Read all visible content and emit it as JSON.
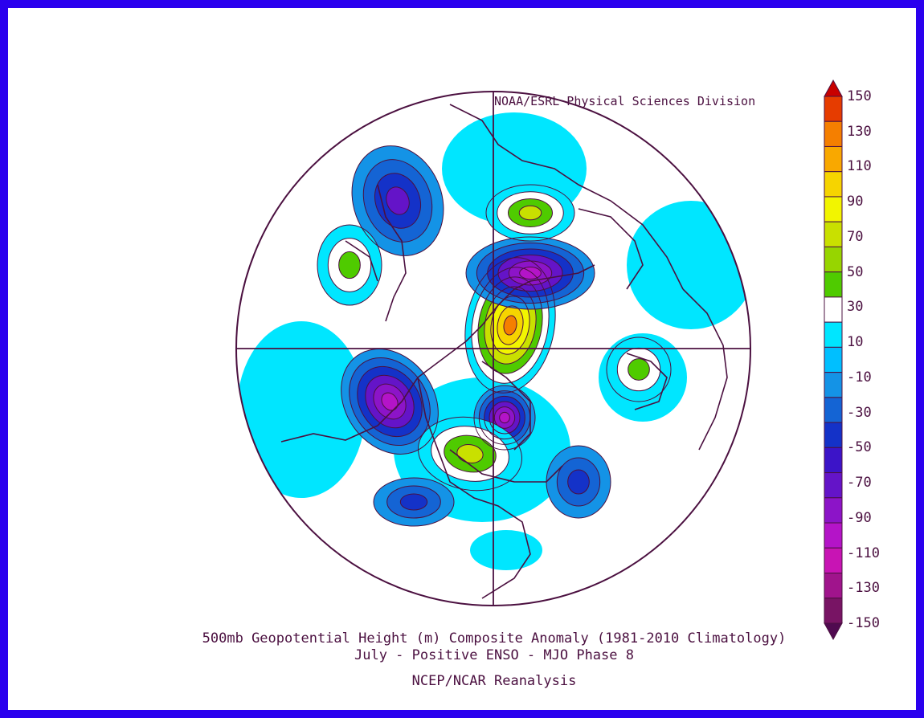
{
  "credit": "NOAA/ESRL Physical Sciences Division",
  "title_line1": "500mb Geopotential Height (m) Composite Anomaly (1981-2010 Climatology)",
  "title_line2": "July - Positive ENSO - MJO Phase 8",
  "source": "NCEP/NCAR Reanalysis",
  "colorbar": {
    "labels": [
      "150",
      "130",
      "110",
      "90",
      "70",
      "50",
      "30",
      "10",
      "-10",
      "-30",
      "-50",
      "-70",
      "-90",
      "-110",
      "-130",
      "-150"
    ],
    "colors": [
      "#c80000",
      "#e63c00",
      "#f57f00",
      "#f9a800",
      "#f6d400",
      "#f2f500",
      "#c9e000",
      "#97d500",
      "#4fcb00",
      "#ffffff",
      "#00e6ff",
      "#00bfff",
      "#1493e6",
      "#1464d4",
      "#1432c8",
      "#3c14c8",
      "#6414c8",
      "#8c14c8",
      "#b414c8",
      "#c814b4",
      "#a0148c",
      "#781464",
      "#500a50"
    ]
  },
  "map": {
    "projection": "polar stereographic",
    "anomalies": [
      {
        "name": "north-central-us-high",
        "value": 110
      },
      {
        "name": "alaska-low",
        "value": -90
      },
      {
        "name": "north-atlantic-low",
        "value": -90
      },
      {
        "name": "ne-asia-low",
        "value": -90
      },
      {
        "name": "europe-high",
        "value": 60
      },
      {
        "name": "siberia-high",
        "value": 60
      },
      {
        "name": "nw-pacific-low",
        "value": -50
      },
      {
        "name": "atlantic-low",
        "value": -40
      },
      {
        "name": "mediterranean-low",
        "value": -30
      },
      {
        "name": "eastern-us-high",
        "value": 40
      },
      {
        "name": "pacific-high",
        "value": 40
      }
    ]
  }
}
